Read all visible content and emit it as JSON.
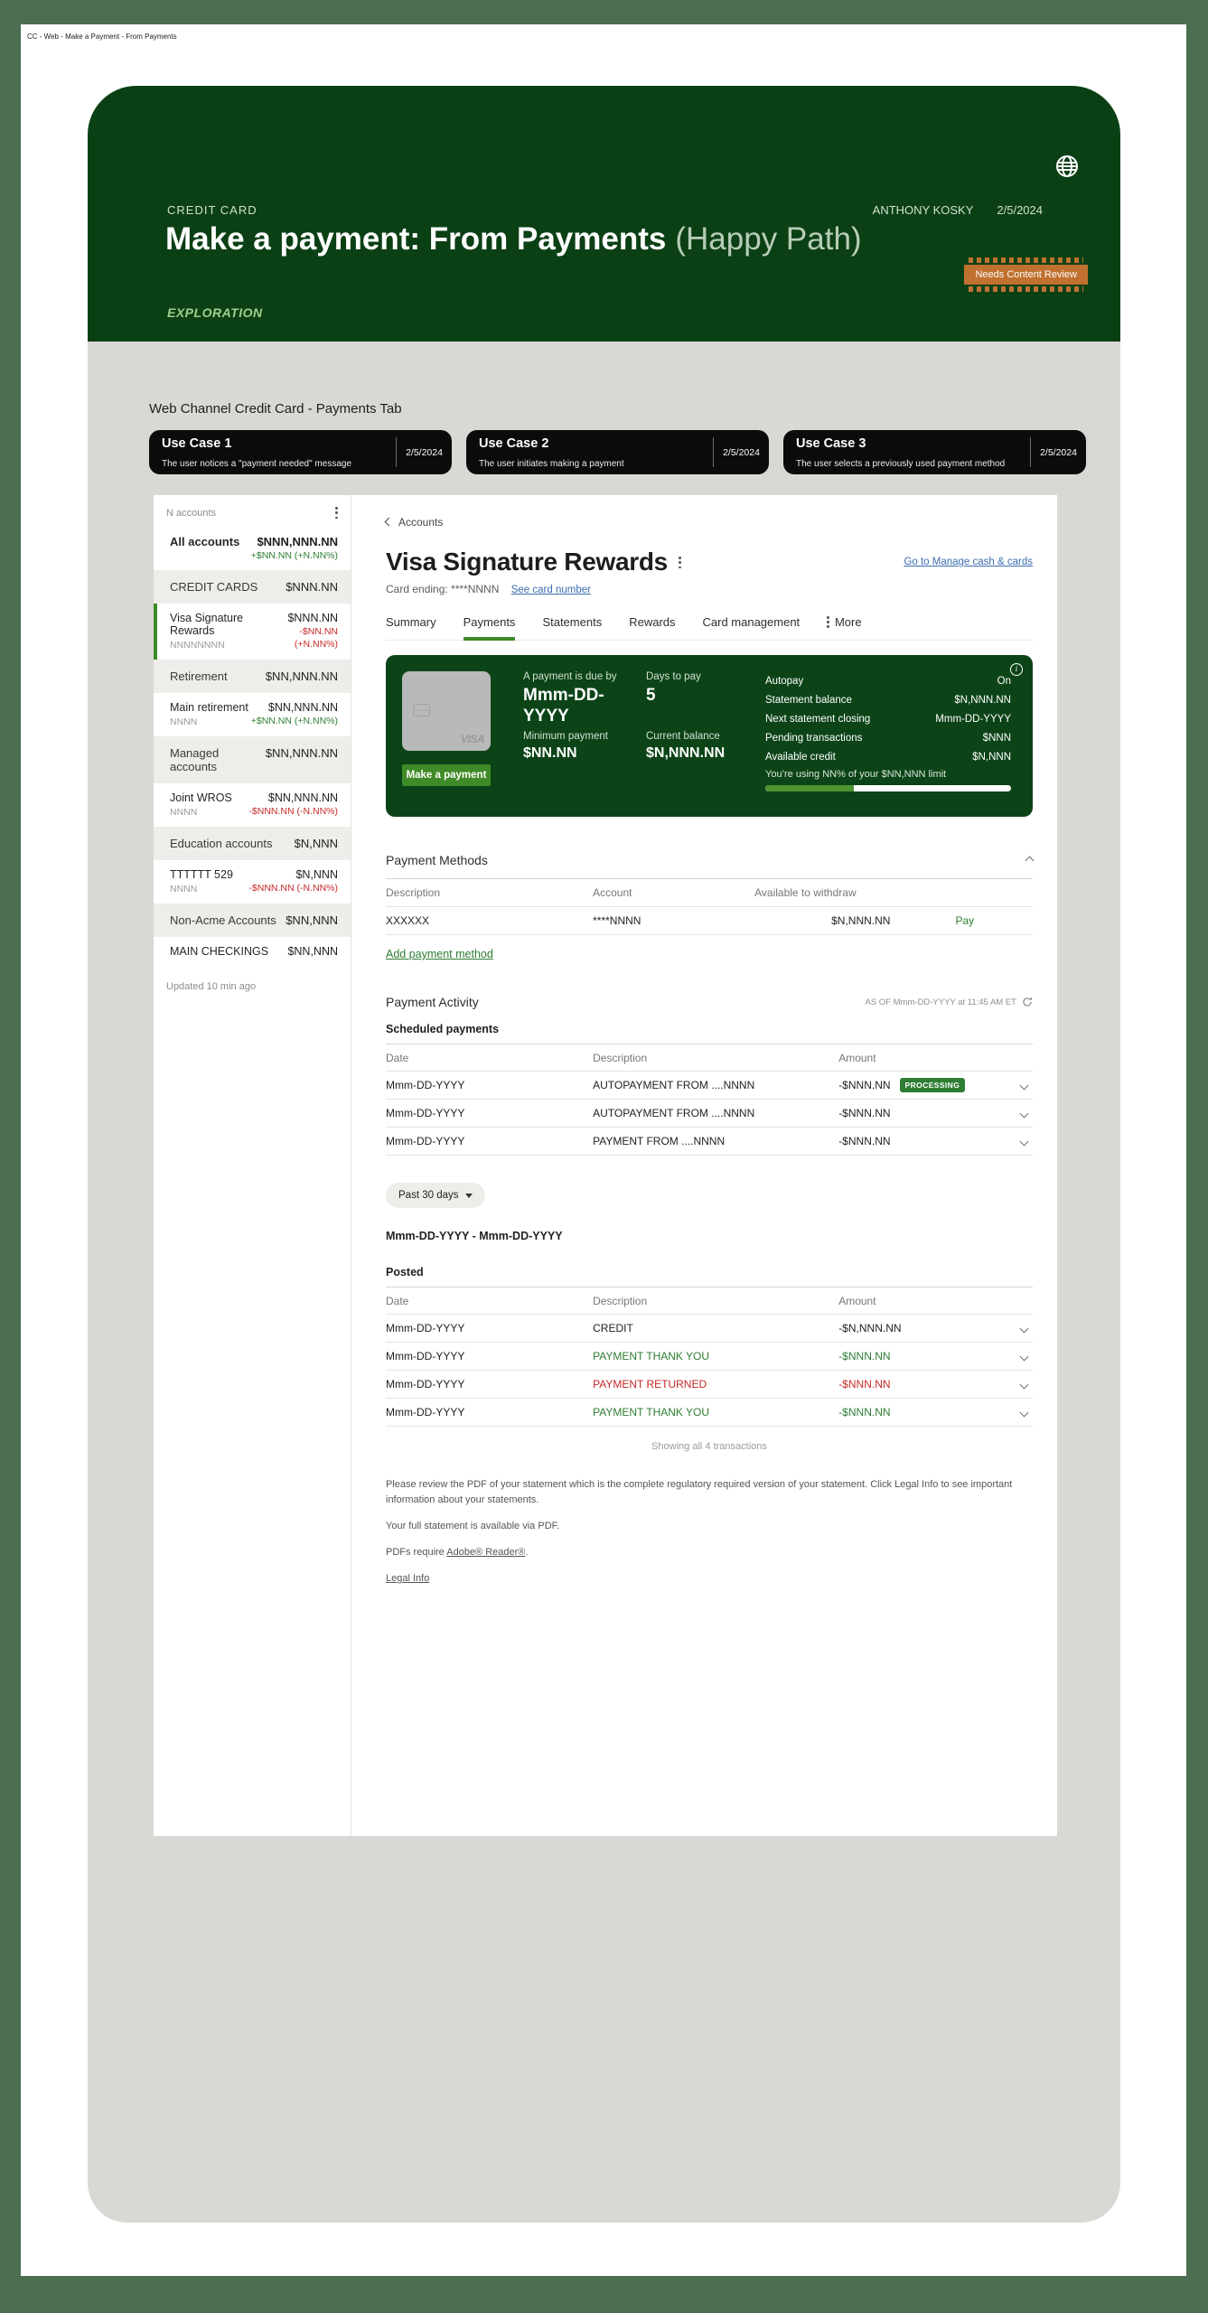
{
  "meta": {
    "breadcrumb": "CC - Web - Make a Payment - From  Payments"
  },
  "colors": {
    "brand_green": "#0b4015",
    "accent_green": "#3f8b27",
    "positive": "#2e7d32",
    "negative": "#c62828",
    "link_blue": "#3c6db0",
    "tag_orange": "#c1712f"
  },
  "header": {
    "eyebrow": "CREDIT CARD",
    "user_name": "ANTHONY KOSKY",
    "date": "2/5/2024",
    "title": "Make a payment: From Payments",
    "title_note": "(Happy Path)",
    "review_tag": "Needs Content Review",
    "phase_label": "EXPLORATION"
  },
  "stage": {
    "section_title": "Web Channel Credit Card - Payments Tab",
    "use_cases": [
      {
        "title": "Use Case 1",
        "description": "The user notices a \"payment needed\" message",
        "date": "2/5/2024"
      },
      {
        "title": "Use Case 2",
        "description": "The user initiates making a payment",
        "date": "2/5/2024"
      },
      {
        "title": "Use Case 3",
        "description": "The user selects a previously used payment method",
        "date": "2/5/2024"
      }
    ]
  },
  "sidebar": {
    "title": "N accounts",
    "rows": [
      {
        "name": "All accounts",
        "value": "$NNN,NNN.NN",
        "change": "+$NN.NN (+N.NN%)"
      },
      {
        "name": "CREDIT CARDS",
        "value": "$NNN.NN"
      },
      {
        "name": "Visa Signature Rewards",
        "sub": "NNNNNNNN",
        "value": "$NNN.NN",
        "change": "-$NN.NN",
        "change2": "(+N.NN%)"
      },
      {
        "name": "Retirement",
        "value": "$NN,NNN.NN"
      },
      {
        "name": "Main retirement",
        "sub": "NNNN",
        "value": "$NN,NNN.NN",
        "change": "+$NN.NN (+N.NN%)"
      },
      {
        "name": "Managed accounts",
        "value": "$NN,NNN.NN"
      },
      {
        "name": "Joint WROS",
        "sub": "NNNN",
        "value": "$NN,NNN.NN",
        "change": "-$NNN.NN (-N.NN%)"
      },
      {
        "name": "Education accounts",
        "value": "$N,NNN"
      },
      {
        "name": "TTTTTT 529",
        "sub": "NNNN",
        "value": "$N,NNN",
        "change": "-$NNN.NN (-N.NN%)"
      },
      {
        "name": "Non-Acme Accounts",
        "value": "$NN,NNN"
      },
      {
        "name": "MAIN CHECKINGS",
        "value": "$NN,NNN"
      }
    ],
    "updated": "Updated 10 min ago"
  },
  "account": {
    "back_link": "Accounts",
    "title": "Visa Signature Rewards",
    "manage_link": "Go to Manage cash & cards",
    "card_ending_label": "Card ending: ****NNNN",
    "see_card_link": "See card number",
    "tabs": [
      "Summary",
      "Payments",
      "Statements",
      "Rewards",
      "Card management",
      "More"
    ],
    "active_tab": "Payments"
  },
  "summary_panel": {
    "visa_label": "VISA",
    "due_label": "A payment is due by",
    "due_value": "Mmm-DD-YYYY",
    "days_label": "Days to pay",
    "days_value": "5",
    "min_label": "Minimum payment",
    "min_value": "$NN.NN",
    "balance_label": "Current balance",
    "balance_value": "$N,NNN.NN",
    "button": "Make a payment",
    "stats": [
      {
        "label": "Autopay",
        "value": "On"
      },
      {
        "label": "Statement balance",
        "value": "$N,NNN.NN"
      },
      {
        "label": "Next statement closing",
        "value": "Mmm-DD-YYYY"
      },
      {
        "label": "Pending transactions",
        "value": "$NNN"
      },
      {
        "label": "Available credit",
        "value": "$N,NNN"
      }
    ],
    "usage_note": "You’re using NN% of your $NN,NNN limit",
    "usage_percent": 36
  },
  "payment_methods": {
    "title": "Payment Methods",
    "columns": [
      "Description",
      "Account",
      "Available to withdraw"
    ],
    "rows": [
      {
        "description": "XXXXXX",
        "account": "****NNNN",
        "available": "$N,NNN.NN",
        "action": "Pay"
      }
    ],
    "add_link": "Add payment method"
  },
  "payment_activity": {
    "title": "Payment Activity",
    "as_of": "AS OF  Mmm-DD-YYYY at 11:45 AM ET",
    "scheduled_title": "Scheduled payments",
    "columns": [
      "Date",
      "Description",
      "Amount"
    ],
    "scheduled_rows": [
      {
        "date": "Mmm-DD-YYYY",
        "description": "AUTOPAYMENT FROM ....NNNN",
        "amount": "-$NNN.NN",
        "badge": "PROCESSING"
      },
      {
        "date": "Mmm-DD-YYYY",
        "description": "AUTOPAYMENT FROM ....NNNN",
        "amount": "-$NNN.NN"
      },
      {
        "date": "Mmm-DD-YYYY",
        "description": "PAYMENT FROM ....NNNN",
        "amount": "-$NNN.NN"
      }
    ],
    "filter_label": "Past 30 days",
    "range_label": "Mmm-DD-YYYY - Mmm-DD-YYYY",
    "posted_title": "Posted",
    "posted_rows": [
      {
        "date": "Mmm-DD-YYYY",
        "description": "CREDIT",
        "amount": "-$N,NNN.NN",
        "tone": "neutral"
      },
      {
        "date": "Mmm-DD-YYYY",
        "description": "PAYMENT THANK YOU",
        "amount": "-$NNN.NN",
        "tone": "positive"
      },
      {
        "date": "Mmm-DD-YYYY",
        "description": "PAYMENT RETURNED",
        "amount": "-$NNN.NN",
        "tone": "negative"
      },
      {
        "date": "Mmm-DD-YYYY",
        "description": "PAYMENT THANK YOU",
        "amount": "-$NNN.NN",
        "tone": "positive"
      }
    ],
    "showing_note": "Showing all 4 transactions"
  },
  "footer": {
    "disclaimer": "Please review the PDF of your statement which is the complete regulatory required version of your statement. Click Legal Info to see important information about your statements.",
    "statement_note": "Your full statement is available via PDF.",
    "pdf_note_prefix": "PDFs require ",
    "pdf_link": "Adobe® Reader®",
    "pdf_note_suffix": ".",
    "legal_link": "Legal Info"
  }
}
